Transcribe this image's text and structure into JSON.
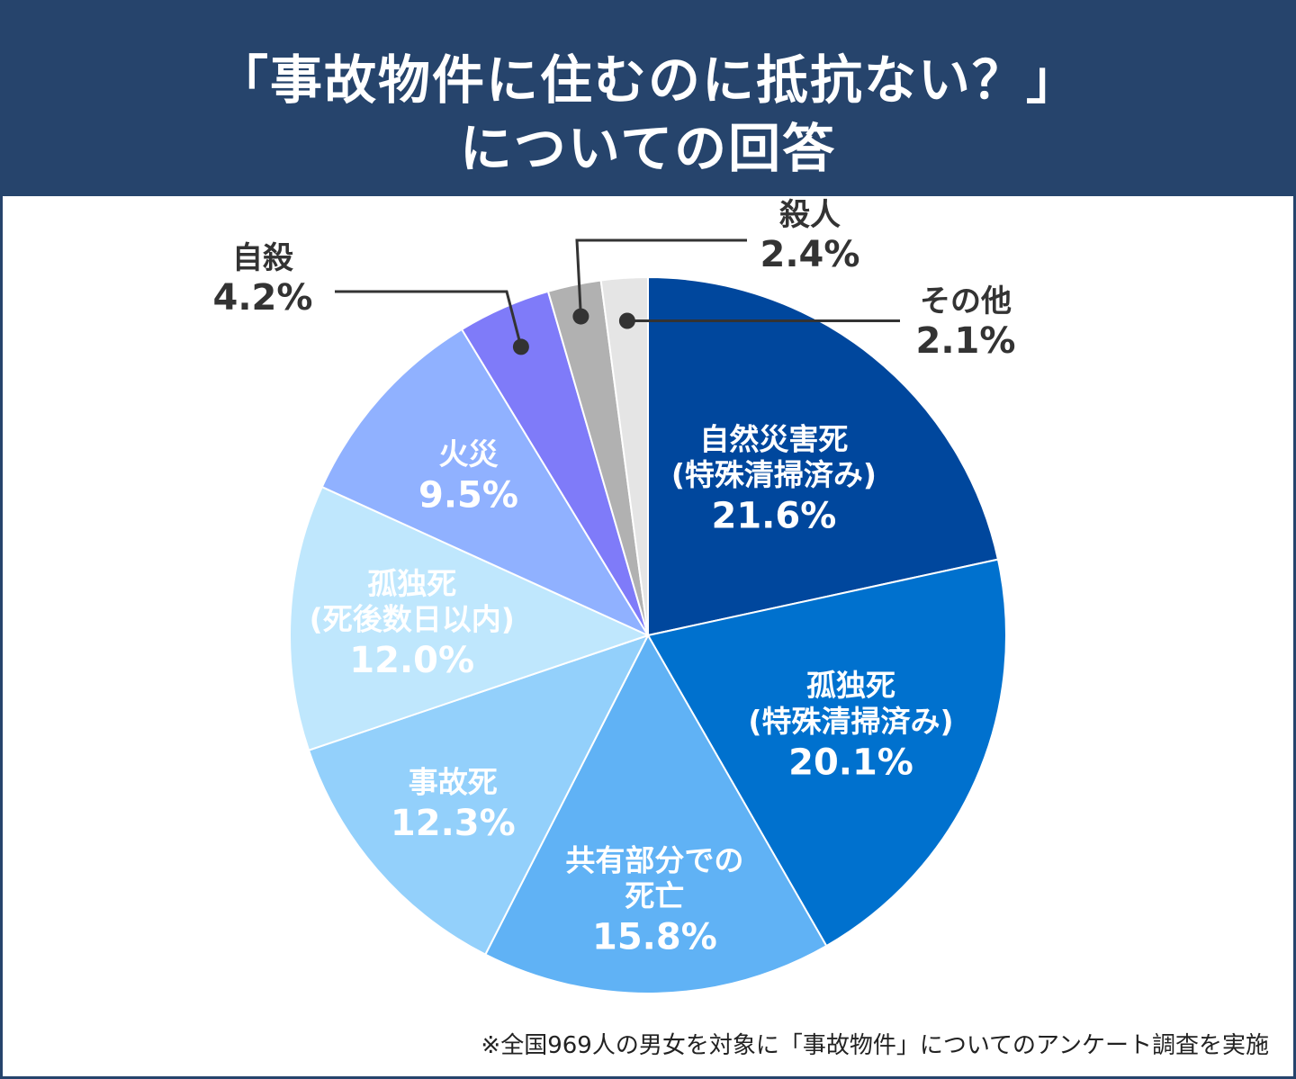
{
  "header": {
    "title_line1": "「事故物件に住むのに抵抗ない？」",
    "title_line2": "についての回答"
  },
  "footnote": "※全国969人の男女を対象に「事故物件」についてのアンケート調査を実施",
  "chart_data": {
    "type": "pie",
    "title": "「事故物件に住むのに抵抗ない？」についての回答",
    "unit": "%",
    "slices": [
      {
        "label_lines": [
          "自然災害死",
          "(特殊清掃済み)"
        ],
        "value": 21.6,
        "value_label": "21.6%",
        "color": "#00479d",
        "text_color": "#ffffff"
      },
      {
        "label_lines": [
          "孤独死",
          "(特殊清掃済み)"
        ],
        "value": 20.1,
        "value_label": "20.1%",
        "color": "#0071ce",
        "text_color": "#ffffff"
      },
      {
        "label_lines": [
          "共有部分での",
          "死亡"
        ],
        "value": 15.8,
        "value_label": "15.8%",
        "color": "#60b2f5",
        "text_color": "#ffffff"
      },
      {
        "label_lines": [
          "事故死"
        ],
        "value": 12.3,
        "value_label": "12.3%",
        "color": "#93d0fb",
        "text_color": "#ffffff"
      },
      {
        "label_lines": [
          "孤独死",
          "(死後数日以内)"
        ],
        "value": 12.0,
        "value_label": "12.0%",
        "color": "#bfe7fd",
        "text_color": "#ffffff"
      },
      {
        "label_lines": [
          "火災"
        ],
        "value": 9.5,
        "value_label": "9.5%",
        "color": "#90b1ff",
        "text_color": "#ffffff"
      },
      {
        "label_lines": [
          "自殺"
        ],
        "value": 4.2,
        "value_label": "4.2%",
        "color": "#7f7bf9",
        "text_color": "#333333"
      },
      {
        "label_lines": [
          "殺人"
        ],
        "value": 2.4,
        "value_label": "2.4%",
        "color": "#b1b1b1",
        "text_color": "#333333"
      },
      {
        "label_lines": [
          "その他"
        ],
        "value": 2.1,
        "value_label": "2.1%",
        "color": "#e5e5e5",
        "text_color": "#333333"
      }
    ]
  }
}
